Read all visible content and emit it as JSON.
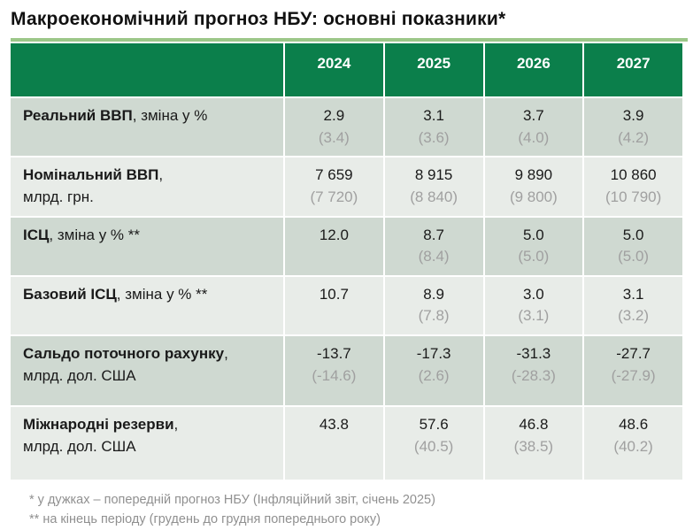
{
  "title": "Макроекономічний прогноз НБУ: основні показники*",
  "colors": {
    "header_green": "#0b7f4b",
    "title_rule_green": "#9cc789",
    "row_odd_bg": "#cfd9d1",
    "row_even_bg": "#e8ece8",
    "previous_value_gray": "#a0a0a0",
    "footnote_gray": "#909090"
  },
  "table": {
    "years": [
      "2024",
      "2025",
      "2026",
      "2027"
    ],
    "rows": [
      {
        "label_bold": "Реальний ВВП",
        "label_suffix": ", зміна у %",
        "label_line2": "",
        "values": [
          "2.9",
          "3.1",
          "3.7",
          "3.9"
        ],
        "previous": [
          "(3.4)",
          "(3.6)",
          "(4.0)",
          "(4.2)"
        ]
      },
      {
        "label_bold": "Номінальний ВВП",
        "label_suffix": ",",
        "label_line2": "млрд. грн.",
        "values": [
          "7 659",
          "8 915",
          "9 890",
          "10 860"
        ],
        "previous": [
          "(7 720)",
          "(8 840)",
          "(9 800)",
          "(10 790)"
        ]
      },
      {
        "label_bold": "ІСЦ",
        "label_suffix": ", зміна у % **",
        "label_line2": "",
        "values": [
          "12.0",
          "8.7",
          "5.0",
          "5.0"
        ],
        "previous": [
          "",
          "(8.4)",
          "(5.0)",
          "(5.0)"
        ]
      },
      {
        "label_bold": "Базовий ІСЦ",
        "label_suffix": ", зміна у % **",
        "label_line2": "",
        "values": [
          "10.7",
          "8.9",
          "3.0",
          "3.1"
        ],
        "previous": [
          "",
          "(7.8)",
          "(3.1)",
          "(3.2)"
        ]
      },
      {
        "label_bold": "Сальдо поточного рахунку",
        "label_suffix": ",",
        "label_line2": "млрд. дол. США",
        "values": [
          "-13.7",
          "-17.3",
          "-31.3",
          "-27.7"
        ],
        "previous": [
          "(-14.6)",
          "(2.6)",
          "(-28.3)",
          "(-27.9)"
        ]
      },
      {
        "label_bold": "Міжнародні резерви",
        "label_suffix": ",",
        "label_line2": "млрд. дол. США",
        "values": [
          "43.8",
          "57.6",
          "46.8",
          "48.6"
        ],
        "previous": [
          "",
          "(40.5)",
          "(38.5)",
          "(40.2)"
        ]
      }
    ]
  },
  "footnotes": [
    "* у дужках – попередній прогноз НБУ (Інфляційний звіт, січень 2025)",
    "** на кінець періоду (грудень до грудня попереднього року)"
  ]
}
